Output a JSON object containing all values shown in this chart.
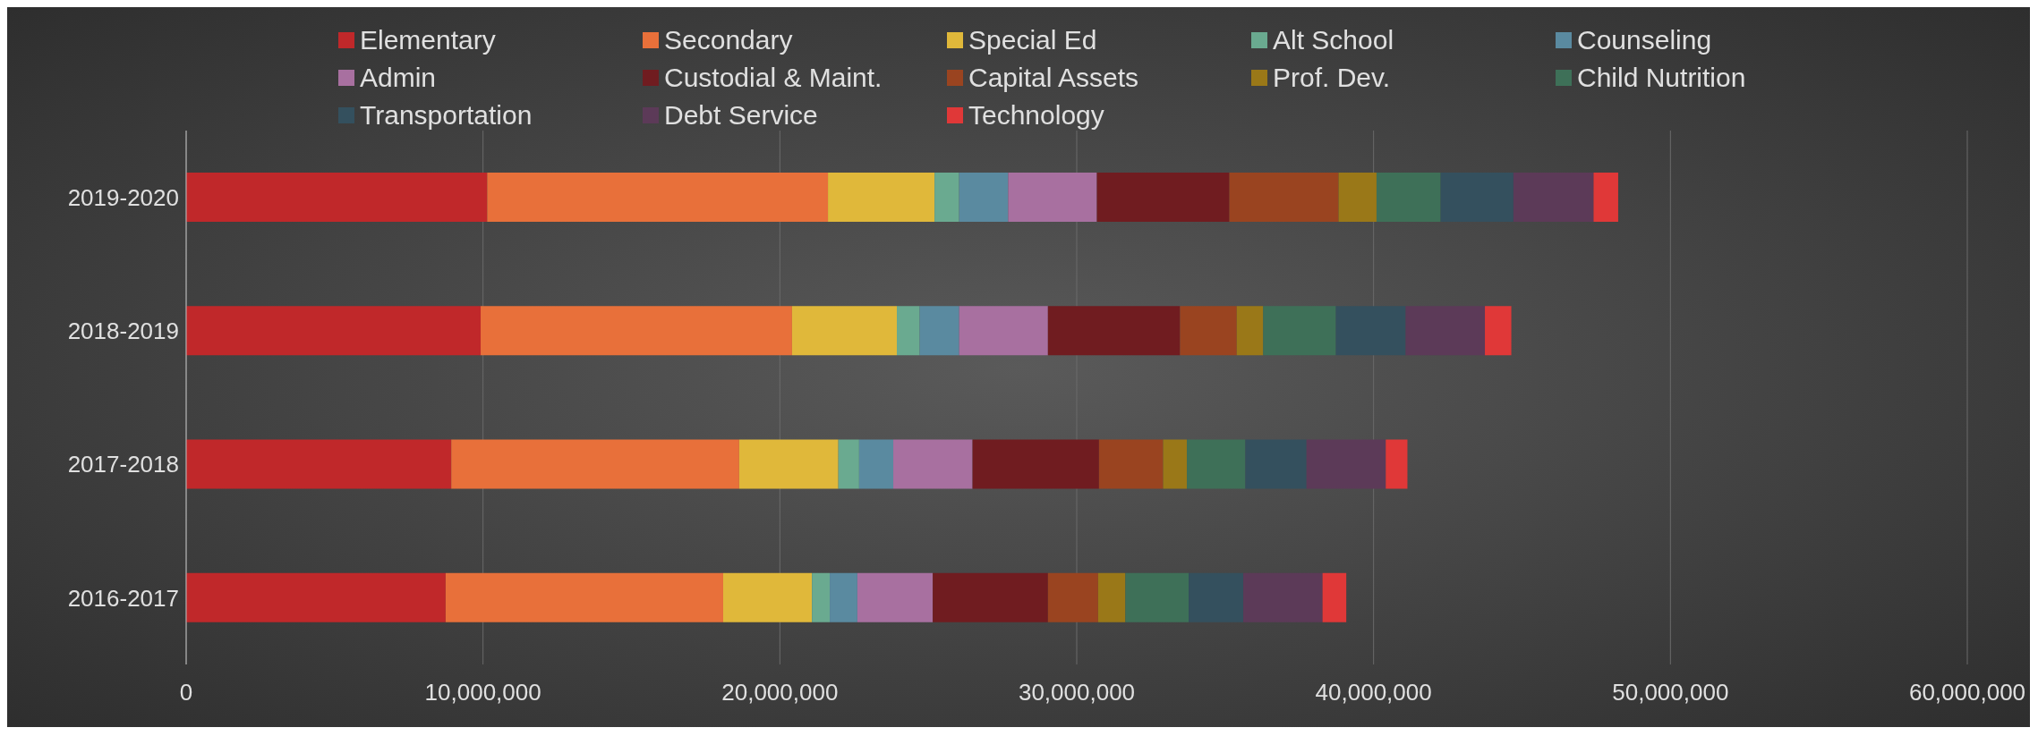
{
  "chart_data": {
    "type": "bar",
    "orientation": "horizontal",
    "stacked": true,
    "grid": "x",
    "legend": "top",
    "categories": [
      "2019-2020",
      "2018-2019",
      "2017-2018",
      "2016-2017"
    ],
    "xlim": [
      0,
      60000000
    ],
    "xticks": [
      0,
      {
        "value": 10000000,
        "label": "10,000,000"
      },
      {
        "value": 20000000,
        "label": "20,000,000"
      },
      {
        "value": 30000000,
        "label": "30,000,000"
      },
      {
        "value": 40000000,
        "label": "40,000,000"
      },
      {
        "value": 50000000,
        "label": "50,000,000"
      },
      {
        "value": 60000000,
        "label": "60,000,000"
      }
    ],
    "series": [
      {
        "name": "Elementary",
        "color": "#c0282a",
        "values": [
          10140000,
          9920000,
          8930000,
          8740000
        ]
      },
      {
        "name": "Secondary",
        "color": "#e8703a",
        "values": [
          11480000,
          10490000,
          9700000,
          9350000
        ]
      },
      {
        "name": "Special Ed",
        "color": "#e0b83a",
        "values": [
          3590000,
          3530000,
          3340000,
          2990000
        ]
      },
      {
        "name": "Alt School",
        "color": "#6aaa90",
        "values": [
          830000,
          770000,
          700000,
          600000
        ]
      },
      {
        "name": "Counseling",
        "color": "#5a8aa0",
        "values": [
          1650000,
          1330000,
          1150000,
          930000
        ]
      },
      {
        "name": "Admin",
        "color": "#a870a0",
        "values": [
          2990000,
          2990000,
          2670000,
          2540000
        ]
      },
      {
        "name": "Custodial & Maint.",
        "color": "#701c20",
        "values": [
          4460000,
          4450000,
          4260000,
          3880000
        ]
      },
      {
        "name": "Capital Assets",
        "color": "#9a4420",
        "values": [
          3680000,
          1910000,
          2160000,
          1690000
        ]
      },
      {
        "name": "Prof. Dev.",
        "color": "#9a7818",
        "values": [
          1280000,
          890000,
          800000,
          920000
        ]
      },
      {
        "name": "Child Nutrition",
        "color": "#3e7058",
        "values": [
          2160000,
          2450000,
          1970000,
          2130000
        ]
      },
      {
        "name": "Transportation",
        "color": "#34505e",
        "values": [
          2450000,
          2350000,
          2060000,
          1840000
        ]
      },
      {
        "name": "Debt Service",
        "color": "#5c3a58",
        "values": [
          2700000,
          2670000,
          2670000,
          2670000
        ]
      },
      {
        "name": "Technology",
        "color": "#e03838",
        "values": [
          830000,
          890000,
          730000,
          800000
        ]
      }
    ]
  }
}
